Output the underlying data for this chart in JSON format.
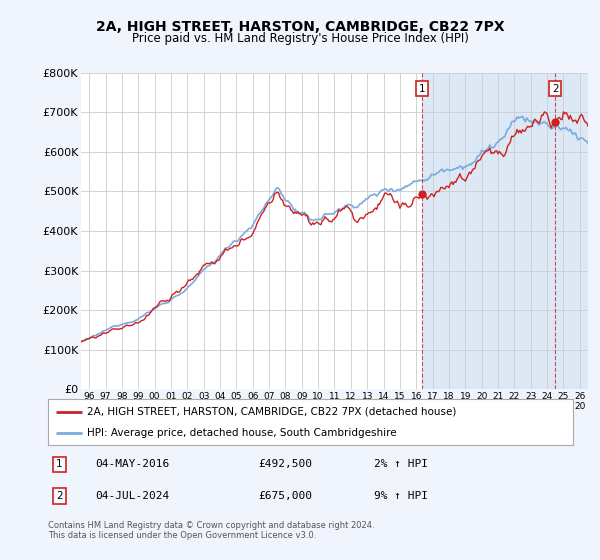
{
  "title": "2A, HIGH STREET, HARSTON, CAMBRIDGE, CB22 7PX",
  "subtitle": "Price paid vs. HM Land Registry's House Price Index (HPI)",
  "ylim": [
    0,
    800000
  ],
  "yticks": [
    0,
    100000,
    200000,
    300000,
    400000,
    500000,
    600000,
    700000,
    800000
  ],
  "ytick_labels": [
    "£0",
    "£100K",
    "£200K",
    "£300K",
    "£400K",
    "£500K",
    "£600K",
    "£700K",
    "£800K"
  ],
  "xlim_start": 1995.5,
  "xlim_end": 2026.5,
  "hpi_color": "#7aabe0",
  "price_color": "#cc2222",
  "shade_color": "#dce8f5",
  "marker1_date": 2016.37,
  "marker1_price": 492500,
  "marker2_date": 2024.5,
  "marker2_price": 675000,
  "legend_label1": "2A, HIGH STREET, HARSTON, CAMBRIDGE, CB22 7PX (detached house)",
  "legend_label2": "HPI: Average price, detached house, South Cambridgeshire",
  "table_row1": [
    "1",
    "04-MAY-2016",
    "£492,500",
    "2% ↑ HPI"
  ],
  "table_row2": [
    "2",
    "04-JUL-2024",
    "£675,000",
    "9% ↑ HPI"
  ],
  "footer": "Contains HM Land Registry data © Crown copyright and database right 2024.\nThis data is licensed under the Open Government Licence v3.0.",
  "background_color": "#f0f4fc",
  "plot_bg_color": "#ffffff",
  "grid_color": "#cccccc",
  "title_fontsize": 10,
  "subtitle_fontsize": 8.5,
  "seed": 12345
}
